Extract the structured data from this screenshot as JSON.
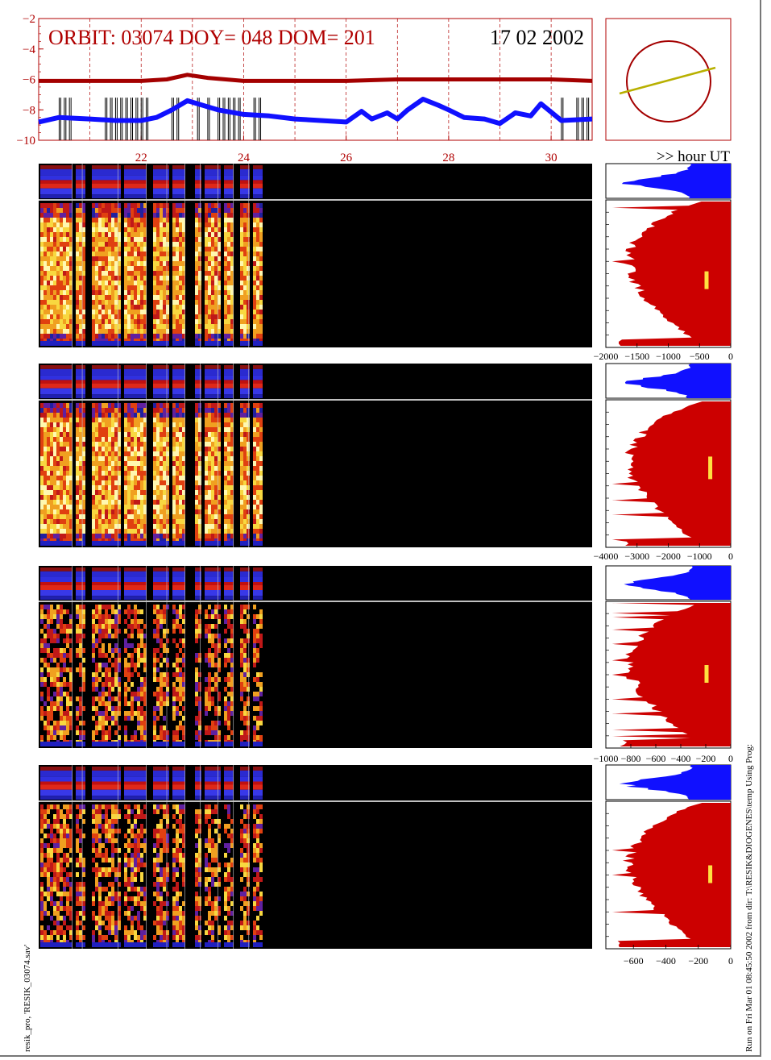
{
  "header": {
    "orbit_text": "ORBIT: 03074 DOY=  048 DOM=  201",
    "date_text": "17 02 2002"
  },
  "colors": {
    "title_red": "#b00000",
    "dark_red": "#a40000",
    "blue": "#1010ff",
    "fill_red": "#cc0000",
    "yellow": "#ffe040",
    "olive": "#b8b000"
  },
  "chart_data": [
    {
      "type": "line",
      "name": "orbit-timeline",
      "ylim": [
        -10,
        -2
      ],
      "yticks": [
        "-2",
        "-4",
        "-6",
        "-8",
        "-10"
      ],
      "xlim": [
        20.0,
        30.8
      ],
      "xticks": [
        "22",
        "24",
        "26",
        "28",
        "30"
      ],
      "xlabel": ">> hour UT",
      "series": [
        {
          "color": "#a40000",
          "x": [
            20.0,
            21.0,
            22.0,
            22.5,
            22.9,
            23.3,
            24.0,
            25.0,
            26.0,
            27.0,
            28.0,
            29.0,
            30.0,
            30.8
          ],
          "y": [
            -6.1,
            -6.1,
            -6.1,
            -6.0,
            -5.7,
            -5.9,
            -6.1,
            -6.1,
            -6.1,
            -6.0,
            -6.0,
            -6.0,
            -6.0,
            -6.1
          ]
        },
        {
          "color": "#1010ff",
          "x": [
            20.0,
            20.4,
            21.0,
            21.5,
            22.0,
            22.3,
            22.6,
            22.9,
            23.2,
            23.5,
            24.0,
            24.5,
            25.0,
            25.5,
            26.0,
            26.3,
            26.5,
            26.8,
            27.0,
            27.2,
            27.5,
            27.8,
            28.0,
            28.3,
            28.7,
            29.0,
            29.3,
            29.6,
            29.8,
            30.2,
            30.8
          ],
          "y": [
            -8.8,
            -8.5,
            -8.6,
            -8.7,
            -8.7,
            -8.5,
            -8.0,
            -7.4,
            -7.7,
            -8.0,
            -8.3,
            -8.4,
            -8.6,
            -8.7,
            -8.8,
            -8.1,
            -8.6,
            -8.2,
            -8.6,
            -8.0,
            -7.3,
            -7.7,
            -8.0,
            -8.5,
            -8.6,
            -8.9,
            -8.2,
            -8.4,
            -7.6,
            -8.7,
            -8.6
          ]
        }
      ],
      "spikes_x": [
        20.4,
        20.5,
        20.6,
        21.3,
        21.4,
        21.5,
        21.6,
        21.7,
        21.8,
        21.9,
        22.0,
        22.1,
        22.6,
        22.7,
        23.1,
        23.3,
        23.5,
        23.6,
        23.7,
        23.8,
        23.9,
        24.2,
        24.3,
        30.2,
        30.5,
        30.6,
        30.7
      ]
    },
    {
      "type": "heatmap",
      "name": "spectrogram-panels",
      "xlim": [
        20.0,
        30.8
      ],
      "data_end_hour": 24.35,
      "gaps_hours": [
        [
          20.65,
          20.72
        ],
        [
          20.85,
          21.0
        ],
        [
          21.55,
          21.62
        ],
        [
          22.1,
          22.18
        ],
        [
          22.5,
          22.58
        ],
        [
          22.85,
          23.02
        ],
        [
          23.15,
          23.2
        ],
        [
          23.5,
          23.57
        ],
        [
          23.8,
          23.88
        ],
        [
          24.1,
          24.16
        ]
      ]
    },
    {
      "type": "area",
      "name": "channel-profiles",
      "panels": [
        {
          "xticks": [
            "-2000",
            "-1500",
            "-1000",
            "-500",
            "0"
          ],
          "marker_fraction": 0.55
        },
        {
          "xticks": [
            "-4000",
            "-3000",
            "-2000",
            "-1000",
            "0"
          ],
          "marker_fraction": 0.45
        },
        {
          "xticks": [
            "-1000",
            "-800",
            "-600",
            "-400",
            "-200",
            "0"
          ],
          "marker_fraction": 0.5
        },
        {
          "xticks": [
            "-600",
            "-400",
            "-200",
            "0"
          ],
          "marker_fraction": 0.5
        }
      ]
    }
  ],
  "footer": {
    "left_text": "resik_pro, 'RESIK_03074.sav'",
    "right_text": "Run on Fri Mar 01 08:45:50 2002  from dir: T:\\RESIK&DIOGENES\\temp Using Prog:"
  }
}
